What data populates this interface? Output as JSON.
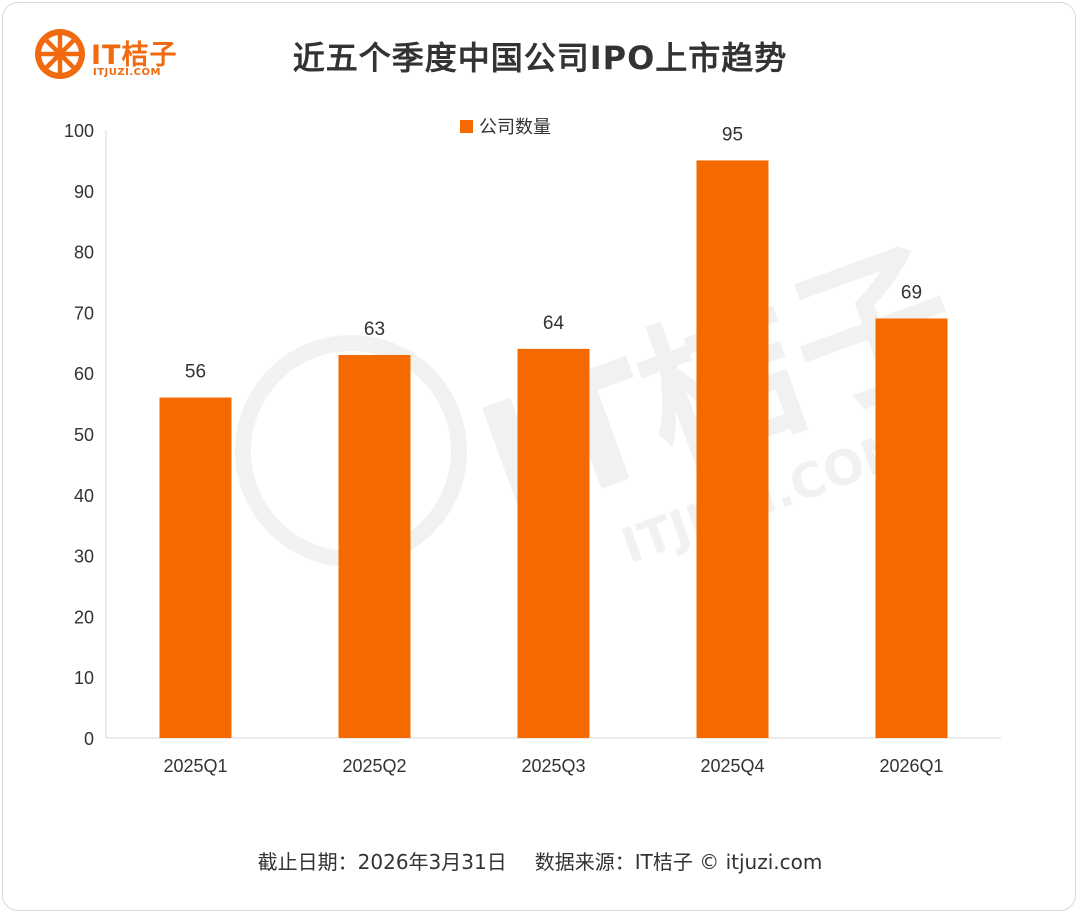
{
  "logo": {
    "text": "IT桔子",
    "sub": "ITJUZI.COM"
  },
  "watermark": {
    "text": "IT桔子",
    "sub": "ITJUZI.COM"
  },
  "footer": {
    "cutoff": "截止日期：2026年3月31日",
    "source": "数据来源：IT桔子 © itjuzi.com"
  },
  "colors": {
    "bar": "#f56a00",
    "accent": "#f26a0f"
  },
  "chart_data": {
    "type": "bar",
    "title": "近五个季度中国公司IPO上市趋势",
    "categories": [
      "2025Q1",
      "2025Q2",
      "2025Q3",
      "2025Q4",
      "2026Q1"
    ],
    "series": [
      {
        "name": "公司数量",
        "values": [
          56,
          63,
          64,
          95,
          69
        ]
      }
    ],
    "xlabel": "",
    "ylabel": "",
    "ylim": [
      0,
      100
    ],
    "yticks": [
      0,
      10,
      20,
      30,
      40,
      50,
      60,
      70,
      80,
      90,
      100
    ],
    "legend": "top-center",
    "grid": false,
    "data_labels": true
  }
}
